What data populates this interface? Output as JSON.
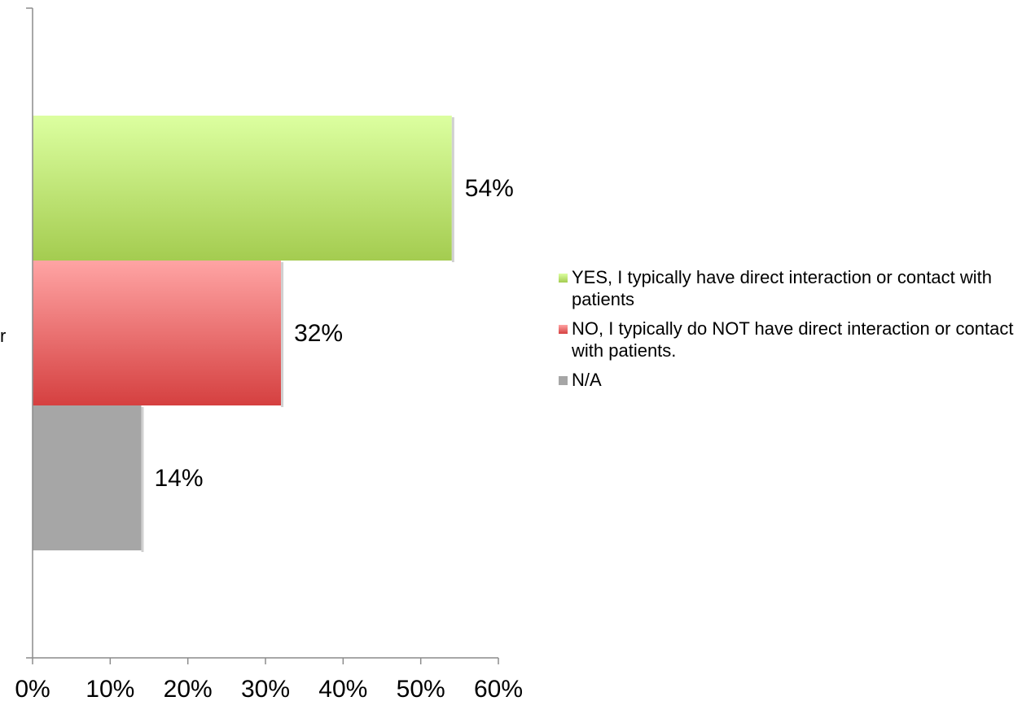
{
  "chart_data": {
    "type": "bar",
    "orientation": "horizontal",
    "categories": [
      "r"
    ],
    "series": [
      {
        "name": "YES, I typically have direct interaction or contact with patients",
        "values": [
          54
        ],
        "label": "54%",
        "color": "#a4cc50",
        "color_light": "#dcffa0"
      },
      {
        "name": "NO, I typically do NOT have direct interaction or contact with patients.",
        "values": [
          32
        ],
        "label": "32%",
        "color": "#d54040",
        "color_light": "#ffa4a4"
      },
      {
        "name": "N/A",
        "values": [
          14
        ],
        "label": "14%",
        "color": "#a6a6a6",
        "color_light": "#a6a6a6"
      }
    ],
    "xlim": [
      0,
      60
    ],
    "xticks": [
      0,
      10,
      20,
      30,
      40,
      50,
      60
    ],
    "xtick_labels": [
      "0%",
      "10%",
      "20%",
      "30%",
      "40%",
      "50%",
      "60%"
    ],
    "grid": false,
    "legend_position": "right"
  }
}
